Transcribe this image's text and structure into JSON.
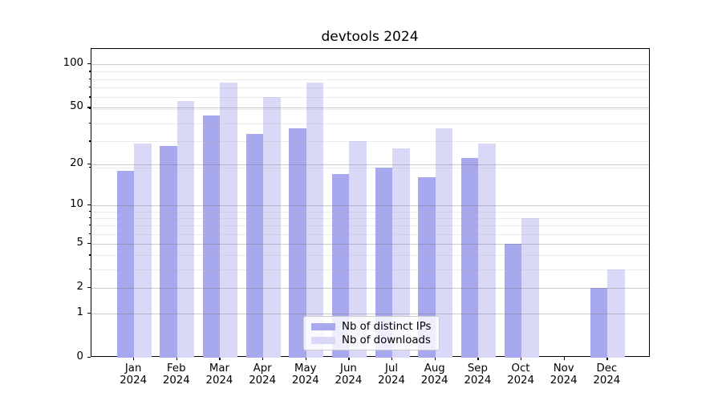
{
  "chart_data": {
    "type": "bar",
    "title": "devtools 2024",
    "year_label": "2024",
    "months": [
      "Jan",
      "Feb",
      "Mar",
      "Apr",
      "May",
      "Jun",
      "Jul",
      "Aug",
      "Sep",
      "Oct",
      "Nov",
      "Dec"
    ],
    "series": [
      {
        "name": "Nb of distinct IPs",
        "color": "#a8a8ee",
        "values": [
          18,
          27,
          44,
          33,
          36,
          17,
          19,
          16,
          22,
          5,
          0,
          2
        ]
      },
      {
        "name": "Nb of downloads",
        "color": "#d9d9f7",
        "values": [
          28,
          56,
          75,
          59,
          75,
          29,
          26,
          36,
          28,
          8,
          0,
          3
        ]
      }
    ],
    "yticks": [
      0,
      1,
      2,
      5,
      10,
      20,
      50,
      100
    ],
    "minor_yticks": [
      3,
      4,
      6,
      7,
      8,
      9,
      19,
      29,
      39,
      49,
      59,
      69,
      79,
      89
    ],
    "yscale": "log10(1+v)",
    "ylim": [
      0,
      128
    ],
    "grid": true,
    "legend_position": "lower center"
  }
}
